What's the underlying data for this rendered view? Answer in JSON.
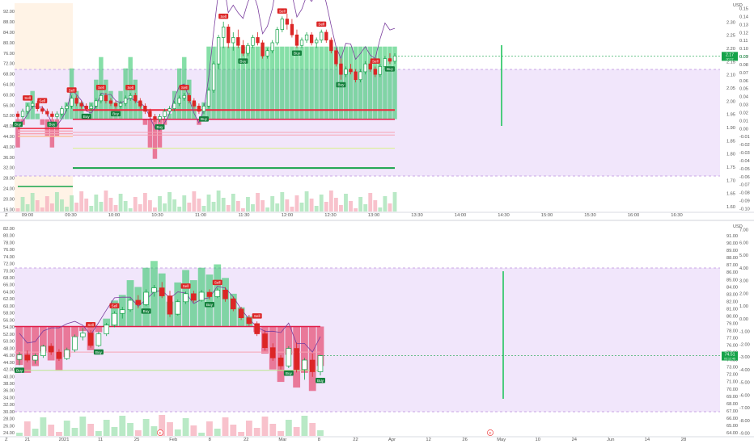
{
  "chart_data": [
    {
      "type": "candlestick",
      "timeframe": "intraday",
      "left_axis": {
        "ticks": [
          92.0,
          88.0,
          84.0,
          80.0,
          76.0,
          72.0,
          68.0,
          64.0,
          60.0,
          56.0,
          52.0,
          48.0,
          44.0,
          40.0,
          36.0,
          32.0,
          28.0,
          24.0,
          20.0,
          16.0
        ],
        "range": [
          15,
          95
        ]
      },
      "right_price_axis": {
        "unit_label": "USD",
        "ticks": [
          2.35,
          2.3,
          2.25,
          2.2,
          2.15,
          2.1,
          2.05,
          2.0,
          1.95,
          1.9,
          1.85,
          1.8,
          1.75,
          1.7,
          1.65,
          1.6
        ],
        "range": [
          1.58,
          2.37
        ]
      },
      "right_osc_axis": {
        "ticks": [
          0.15,
          0.14,
          0.13,
          0.12,
          0.11,
          0.1,
          0.09,
          0.08,
          0.07,
          0.06,
          0.05,
          0.04,
          0.03,
          0.02,
          0.01,
          0.0,
          -0.01,
          -0.02,
          -0.03,
          -0.04,
          -0.05,
          -0.06,
          -0.07,
          -0.08,
          -0.09,
          -0.1
        ]
      },
      "x_axis": {
        "labels": [
          "09:00",
          "09:30",
          "10:00",
          "10:30",
          "11:00",
          "11:30",
          "12:00",
          "12:30",
          "13:00",
          "13:30",
          "14:00",
          "14:30",
          "15:00",
          "15:30",
          "16:00",
          "16:30"
        ]
      },
      "last_price_label": "2.17",
      "last_price_sublabel": "00:12",
      "osc_right_badge": "0.07",
      "candles": [
        [
          1.95,
          1.96,
          1.93,
          1.94
        ],
        [
          1.94,
          1.97,
          1.93,
          1.96
        ],
        [
          1.96,
          1.99,
          1.95,
          1.98
        ],
        [
          1.98,
          2.0,
          1.97,
          1.99
        ],
        [
          1.99,
          2.0,
          1.96,
          1.97
        ],
        [
          1.97,
          1.98,
          1.95,
          1.96
        ],
        [
          1.96,
          1.97,
          1.94,
          1.95
        ],
        [
          1.95,
          1.96,
          1.93,
          1.94
        ],
        [
          1.94,
          1.96,
          1.93,
          1.95
        ],
        [
          1.95,
          1.98,
          1.94,
          1.97
        ],
        [
          1.97,
          1.99,
          1.96,
          1.98
        ],
        [
          1.98,
          2.02,
          1.97,
          2.01
        ],
        [
          2.01,
          2.02,
          1.98,
          1.99
        ],
        [
          1.99,
          2.0,
          1.97,
          1.98
        ],
        [
          1.98,
          1.99,
          1.96,
          1.97
        ],
        [
          1.97,
          1.99,
          1.96,
          1.98
        ],
        [
          1.98,
          2.01,
          1.97,
          2.0
        ],
        [
          2.0,
          2.03,
          1.99,
          2.02
        ],
        [
          2.02,
          2.03,
          1.99,
          2.0
        ],
        [
          2.0,
          2.01,
          1.98,
          1.99
        ],
        [
          1.99,
          2.0,
          1.97,
          1.98
        ],
        [
          1.98,
          2.0,
          1.97,
          1.99
        ],
        [
          1.99,
          2.02,
          1.98,
          2.01
        ],
        [
          2.01,
          2.03,
          2.0,
          2.02
        ],
        [
          2.02,
          2.03,
          1.99,
          2.0
        ],
        [
          2.0,
          2.01,
          1.97,
          1.98
        ],
        [
          1.98,
          1.99,
          1.95,
          1.96
        ],
        [
          1.96,
          1.97,
          1.93,
          1.94
        ],
        [
          1.94,
          1.95,
          1.92,
          1.93
        ],
        [
          1.93,
          1.95,
          1.92,
          1.94
        ],
        [
          1.94,
          1.97,
          1.93,
          1.96
        ],
        [
          1.96,
          1.98,
          1.95,
          1.97
        ],
        [
          1.97,
          2.0,
          1.96,
          1.99
        ],
        [
          1.99,
          2.02,
          1.98,
          2.01
        ],
        [
          2.01,
          2.03,
          2.0,
          2.02
        ],
        [
          2.02,
          2.03,
          1.99,
          2.0
        ],
        [
          2.0,
          2.01,
          1.97,
          1.98
        ],
        [
          1.98,
          1.99,
          1.95,
          1.96
        ],
        [
          1.96,
          1.99,
          1.95,
          1.98
        ],
        [
          1.98,
          2.05,
          1.97,
          2.04
        ],
        [
          2.04,
          2.15,
          2.03,
          2.14
        ],
        [
          2.14,
          2.25,
          2.12,
          2.24
        ],
        [
          2.24,
          2.3,
          2.2,
          2.28
        ],
        [
          2.28,
          2.29,
          2.2,
          2.22
        ],
        [
          2.22,
          2.26,
          2.19,
          2.24
        ],
        [
          2.24,
          2.27,
          2.2,
          2.21
        ],
        [
          2.21,
          2.23,
          2.17,
          2.18
        ],
        [
          2.18,
          2.22,
          2.17,
          2.21
        ],
        [
          2.21,
          2.25,
          2.2,
          2.24
        ],
        [
          2.24,
          2.26,
          2.21,
          2.22
        ],
        [
          2.22,
          2.23,
          2.16,
          2.17
        ],
        [
          2.17,
          2.2,
          2.16,
          2.19
        ],
        [
          2.19,
          2.23,
          2.18,
          2.22
        ],
        [
          2.22,
          2.28,
          2.21,
          2.27
        ],
        [
          2.27,
          2.32,
          2.26,
          2.31
        ],
        [
          2.31,
          2.33,
          2.27,
          2.29
        ],
        [
          2.29,
          2.31,
          2.24,
          2.25
        ],
        [
          2.25,
          2.27,
          2.2,
          2.21
        ],
        [
          2.21,
          2.24,
          2.2,
          2.23
        ],
        [
          2.23,
          2.26,
          2.22,
          2.25
        ],
        [
          2.25,
          2.26,
          2.21,
          2.22
        ],
        [
          2.22,
          2.24,
          2.2,
          2.23
        ],
        [
          2.23,
          2.27,
          2.22,
          2.26
        ],
        [
          2.26,
          2.27,
          2.22,
          2.23
        ],
        [
          2.23,
          2.24,
          2.18,
          2.19
        ],
        [
          2.19,
          2.2,
          2.13,
          2.14
        ],
        [
          2.14,
          2.16,
          2.08,
          2.1
        ],
        [
          2.1,
          2.13,
          2.09,
          2.12
        ],
        [
          2.12,
          2.14,
          2.1,
          2.11
        ],
        [
          2.11,
          2.12,
          2.07,
          2.08
        ],
        [
          2.08,
          2.12,
          2.07,
          2.11
        ],
        [
          2.11,
          2.15,
          2.1,
          2.14
        ],
        [
          2.14,
          2.15,
          2.11,
          2.12
        ],
        [
          2.12,
          2.13,
          2.09,
          2.1
        ],
        [
          2.1,
          2.14,
          2.09,
          2.13
        ],
        [
          2.13,
          2.17,
          2.12,
          2.16
        ],
        [
          2.16,
          2.18,
          2.14,
          2.15
        ],
        [
          2.15,
          2.18,
          2.14,
          2.17
        ]
      ],
      "signals": [
        {
          "i": 2,
          "label": "Sell",
          "side": "sell"
        },
        {
          "i": 0,
          "label": "Buy",
          "side": "buy"
        },
        {
          "i": 7,
          "label": "Buy",
          "side": "buy"
        },
        {
          "i": 5,
          "label": "Sell",
          "side": "sell"
        },
        {
          "i": 11,
          "label": "Sell",
          "side": "sell"
        },
        {
          "i": 14,
          "label": "Buy",
          "side": "buy"
        },
        {
          "i": 17,
          "label": "Sell",
          "side": "sell"
        },
        {
          "i": 20,
          "label": "Buy",
          "side": "buy"
        },
        {
          "i": 23,
          "label": "Sell",
          "side": "sell"
        },
        {
          "i": 29,
          "label": "Buy",
          "side": "buy"
        },
        {
          "i": 34,
          "label": "Sell",
          "side": "sell"
        },
        {
          "i": 38,
          "label": "Buy",
          "side": "buy"
        },
        {
          "i": 42,
          "label": "Sell",
          "side": "sell"
        },
        {
          "i": 46,
          "label": "Buy",
          "side": "buy"
        },
        {
          "i": 54,
          "label": "Sell",
          "side": "sell"
        },
        {
          "i": 57,
          "label": "Buy",
          "side": "buy"
        },
        {
          "i": 62,
          "label": "Sell",
          "side": "sell"
        },
        {
          "i": 66,
          "label": "Buy",
          "side": "buy"
        },
        {
          "i": 73,
          "label": "Sell",
          "side": "sell"
        },
        {
          "i": 76,
          "label": "Buy",
          "side": "buy"
        }
      ]
    },
    {
      "type": "candlestick",
      "timeframe": "daily",
      "left_axis": {
        "ticks": [
          82.0,
          80.0,
          78.0,
          76.0,
          74.0,
          72.0,
          70.0,
          68.0,
          66.0,
          64.0,
          62.0,
          60.0,
          58.0,
          56.0,
          54.0,
          52.0,
          50.0,
          48.0,
          46.0,
          44.0,
          42.0,
          40.0,
          38.0,
          36.0,
          34.0,
          32.0,
          30.0,
          28.0,
          26.0,
          24.0
        ],
        "range": [
          23,
          83
        ]
      },
      "right_price_axis": {
        "unit_label": "USD",
        "ticks": [
          92.0,
          91.0,
          90.0,
          89.0,
          88.0,
          87.0,
          86.0,
          85.0,
          84.0,
          83.0,
          82.0,
          81.0,
          80.0,
          79.0,
          78.0,
          77.0,
          76.0,
          75.0,
          74.0,
          73.0,
          72.0,
          71.0,
          70.0,
          69.0,
          68.0,
          67.0,
          66.0,
          65.0,
          64.0
        ],
        "range": [
          63.5,
          92.5
        ]
      },
      "right_osc_axis": {
        "ticks": [
          7.0,
          6.0,
          5.0,
          4.0,
          3.0,
          2.0,
          1.0,
          0.0,
          -1.0,
          -2.0,
          -3.0,
          -4.0,
          -5.0,
          -6.0,
          -7.0,
          -8.0,
          -9.0
        ]
      },
      "x_axis": {
        "labels": [
          "21",
          "2021",
          "11",
          "25",
          "Feb",
          "8",
          "22",
          "Mar",
          "8",
          "22",
          "Apr",
          "12",
          "26",
          "May",
          "10",
          "24",
          "Jun",
          "14",
          "28"
        ]
      },
      "last_price_label": "74.51",
      "last_price_sublabel": "03:12:45",
      "candles": [
        [
          74.0,
          75.0,
          73.2,
          74.6
        ],
        [
          74.6,
          75.2,
          73.6,
          73.9
        ],
        [
          73.9,
          74.8,
          73.4,
          74.5
        ],
        [
          74.5,
          76.0,
          74.2,
          75.8
        ],
        [
          75.8,
          76.2,
          74.6,
          75.0
        ],
        [
          75.0,
          75.4,
          73.8,
          74.1
        ],
        [
          74.1,
          75.6,
          73.9,
          75.3
        ],
        [
          75.3,
          77.4,
          75.0,
          77.1
        ],
        [
          77.1,
          78.3,
          76.6,
          77.6
        ],
        [
          77.6,
          78.0,
          75.6,
          75.9
        ],
        [
          75.9,
          77.8,
          75.7,
          77.5
        ],
        [
          77.5,
          79.0,
          77.2,
          78.7
        ],
        [
          78.7,
          80.6,
          78.4,
          80.3
        ],
        [
          80.3,
          81.2,
          79.6,
          80.8
        ],
        [
          80.8,
          82.4,
          80.5,
          82.1
        ],
        [
          82.1,
          82.8,
          81.0,
          81.5
        ],
        [
          81.5,
          83.6,
          81.3,
          83.2
        ],
        [
          83.2,
          84.2,
          82.6,
          83.8
        ],
        [
          83.8,
          84.6,
          82.4,
          82.7
        ],
        [
          82.7,
          83.4,
          79.8,
          80.2
        ],
        [
          80.2,
          82.2,
          80.0,
          81.9
        ],
        [
          81.9,
          83.3,
          81.6,
          83.0
        ],
        [
          83.0,
          83.4,
          81.8,
          82.1
        ],
        [
          82.1,
          83.5,
          81.9,
          83.2
        ],
        [
          83.2,
          83.6,
          82.2,
          82.6
        ],
        [
          82.6,
          83.8,
          82.4,
          83.5
        ],
        [
          83.5,
          83.9,
          81.9,
          82.3
        ],
        [
          82.3,
          82.6,
          80.6,
          80.9
        ],
        [
          80.9,
          81.2,
          79.4,
          79.7
        ],
        [
          79.7,
          80.1,
          78.6,
          78.9
        ],
        [
          78.9,
          79.2,
          77.2,
          77.5
        ],
        [
          77.5,
          78.0,
          75.2,
          75.6
        ],
        [
          75.6,
          76.2,
          73.8,
          74.2
        ],
        [
          74.2,
          74.6,
          72.6,
          73.1
        ],
        [
          73.1,
          75.8,
          72.8,
          75.5
        ],
        [
          75.5,
          76.3,
          72.2,
          72.6
        ],
        [
          72.6,
          74.2,
          71.2,
          73.9
        ],
        [
          73.9,
          74.8,
          71.6,
          72.3
        ],
        [
          72.3,
          74.6,
          71.8,
          74.51
        ]
      ],
      "signals": [
        {
          "i": 0,
          "label": "Buy",
          "side": "buy"
        },
        {
          "i": 9,
          "label": "Sell",
          "side": "sell"
        },
        {
          "i": 10,
          "label": "Buy",
          "side": "buy"
        },
        {
          "i": 12,
          "label": "Sell",
          "side": "sell"
        },
        {
          "i": 16,
          "label": "Buy",
          "side": "buy"
        },
        {
          "i": 21,
          "label": "Sell",
          "side": "sell"
        },
        {
          "i": 24,
          "label": "Buy",
          "side": "buy"
        },
        {
          "i": 25,
          "label": "Sell",
          "side": "sell"
        },
        {
          "i": 30,
          "label": "Sell",
          "side": "sell"
        },
        {
          "i": 34,
          "label": "Buy",
          "side": "buy"
        },
        {
          "i": 38,
          "label": "Buy",
          "side": "buy"
        }
      ],
      "event_badge": "E"
    }
  ],
  "colors": {
    "bull": "#26a69a",
    "bull_bright": "#22c55e",
    "bear": "#ef233c",
    "bear_hist": "#e11d48",
    "buy_label": "#15803d",
    "sell_label": "#dc2626",
    "zone_fill": "#f1e6fb",
    "premarket_fill": "#fff3e6",
    "osc_line": "#7b3f9e",
    "vertical_marker": "#22c55e",
    "axis_text": "#555555",
    "grid": "#eef0f3"
  },
  "bottom_left_label": "Z"
}
